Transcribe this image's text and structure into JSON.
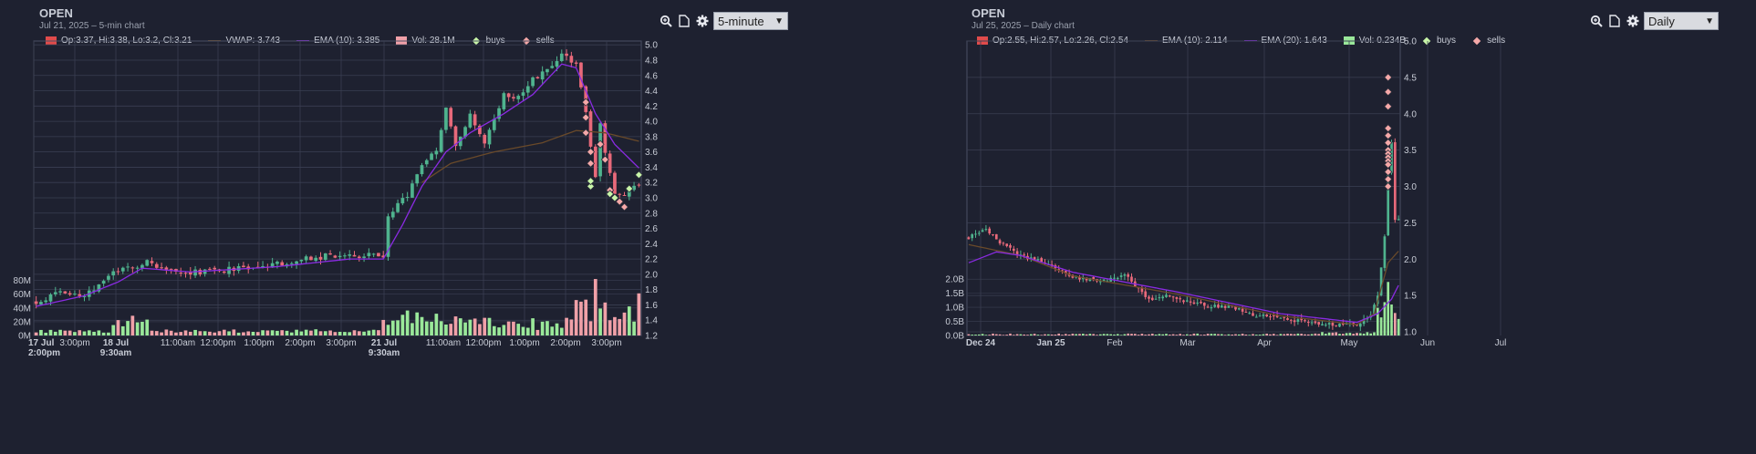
{
  "colors": {
    "up": "#4fb38e",
    "down": "#e8697a",
    "vol_up": "#9ae89a",
    "vol_down": "#f0a0a8",
    "ema_a": "#8a2be2",
    "ema_b": "#6a4a2a",
    "buy": "#c8f5a8",
    "sell": "#f5a8a8",
    "grid": "#3a3f52"
  },
  "panels": [
    {
      "title": "OPEN",
      "subtitle": "Jul 21, 2025 – 5-min chart",
      "interval": "5-minute",
      "toolbar": {
        "zoom": "zoom-icon",
        "export": "document-icon",
        "settings": "gear-icon"
      },
      "legend": {
        "ohlc": "Op:3.37, Hi:3.38, Lo:3.2, Cl:3.21",
        "line1": "VWAP: 3.743",
        "line2": "EMA (10): 3.385",
        "vol": "Vol: 28.1M",
        "buys": "buys",
        "sells": "sells"
      },
      "price_ticks": [
        "5.0",
        "4.8",
        "4.6",
        "4.4",
        "4.2",
        "4.0",
        "3.8",
        "3.6",
        "3.4",
        "3.2",
        "3.0",
        "2.8",
        "2.6",
        "2.4",
        "2.2",
        "2.0",
        "1.8",
        "1.6",
        "1.4",
        "1.2"
      ],
      "vol_ticks": [
        "80M",
        "60M",
        "40M",
        "20M",
        "0M"
      ],
      "x_ticks": [
        {
          "l1": "17 Jul",
          "l2": "2:00pm",
          "bold": true
        },
        {
          "l1": "3:00pm",
          "l2": "",
          "bold": false
        },
        {
          "l1": "18 Jul",
          "l2": "9:30am",
          "bold": true
        },
        {
          "l1": "11:00am",
          "l2": "",
          "bold": false
        },
        {
          "l1": "12:00pm",
          "l2": "",
          "bold": false
        },
        {
          "l1": "1:00pm",
          "l2": "",
          "bold": false
        },
        {
          "l1": "2:00pm",
          "l2": "",
          "bold": false
        },
        {
          "l1": "3:00pm",
          "l2": "",
          "bold": false
        },
        {
          "l1": "21 Jul",
          "l2": "9:30am",
          "bold": true
        },
        {
          "l1": "11:00am",
          "l2": "",
          "bold": false
        },
        {
          "l1": "12:00pm",
          "l2": "",
          "bold": false
        },
        {
          "l1": "1:00pm",
          "l2": "",
          "bold": false
        },
        {
          "l1": "2:00pm",
          "l2": "",
          "bold": false
        },
        {
          "l1": "3:00pm",
          "l2": "",
          "bold": false
        }
      ]
    },
    {
      "title": "OPEN",
      "subtitle": "Jul 25, 2025 – Daily chart",
      "interval": "Daily",
      "toolbar": {
        "zoom": "zoom-icon",
        "export": "document-icon",
        "settings": "gear-icon"
      },
      "legend": {
        "ohlc": "Op:2.55, Hi:2.57, Lo:2.26, Cl:2.54",
        "line1": "EMA (10): 2.114",
        "line2": "EMA (20): 1.643",
        "vol": "Vol: 0.234B",
        "buys": "buys",
        "sells": "sells"
      },
      "price_ticks": [
        "5.0",
        "4.5",
        "4.0",
        "3.5",
        "3.0",
        "2.5",
        "2.0",
        "1.5",
        "1.0"
      ],
      "vol_ticks": [
        "2.0B",
        "1.5B",
        "1.0B",
        "0.5B",
        "0.0B"
      ],
      "x_ticks": [
        {
          "l1": "Dec 24",
          "l2": "",
          "bold": true
        },
        {
          "l1": "Jan 25",
          "l2": "",
          "bold": true
        },
        {
          "l1": "Feb",
          "l2": "",
          "bold": false
        },
        {
          "l1": "Mar",
          "l2": "",
          "bold": false
        },
        {
          "l1": "Apr",
          "l2": "",
          "bold": false
        },
        {
          "l1": "May",
          "l2": "",
          "bold": false
        },
        {
          "l1": "Jun",
          "l2": "",
          "bold": false
        },
        {
          "l1": "Jul",
          "l2": "",
          "bold": false
        }
      ]
    }
  ],
  "chart_data": [
    {
      "type": "candlestick",
      "title": "OPEN",
      "subtitle": "Jul 21, 2025 – 5-min chart",
      "ylim": [
        1.2,
        5.05
      ],
      "volume_ylim_millions": [
        0,
        90
      ],
      "series": [
        {
          "name": "Price",
          "anchors": [
            {
              "t": 0,
              "p": 1.65
            },
            {
              "t": 5,
              "p": 1.75
            },
            {
              "t": 10,
              "p": 1.75
            },
            {
              "t": 15,
              "p": 1.95
            },
            {
              "t": 17,
              "p": 2.05
            },
            {
              "t": 20,
              "p": 2.1
            },
            {
              "t": 23,
              "p": 2.15
            },
            {
              "t": 26,
              "p": 2.1
            },
            {
              "t": 30,
              "p": 2.05
            },
            {
              "t": 32,
              "p": 2.03
            },
            {
              "t": 37,
              "p": 2.05
            },
            {
              "t": 42,
              "p": 2.07
            },
            {
              "t": 48,
              "p": 2.11
            },
            {
              "t": 52,
              "p": 2.15
            },
            {
              "t": 58,
              "p": 2.22
            },
            {
              "t": 62,
              "p": 2.25
            },
            {
              "t": 66,
              "p": 2.22
            },
            {
              "t": 70,
              "p": 2.25
            },
            {
              "t": 72,
              "p": 2.25
            },
            {
              "t": 73,
              "p": 2.75
            },
            {
              "t": 77,
              "p": 3.05
            },
            {
              "t": 80,
              "p": 3.45
            },
            {
              "t": 83,
              "p": 3.6
            },
            {
              "t": 85,
              "p": 4.15
            },
            {
              "t": 87,
              "p": 3.65
            },
            {
              "t": 90,
              "p": 4.1
            },
            {
              "t": 93,
              "p": 3.75
            },
            {
              "t": 97,
              "p": 4.35
            },
            {
              "t": 100,
              "p": 4.3
            },
            {
              "t": 103,
              "p": 4.55
            },
            {
              "t": 106,
              "p": 4.7
            },
            {
              "t": 109,
              "p": 4.87
            },
            {
              "t": 112,
              "p": 4.72
            },
            {
              "t": 114,
              "p": 4.1
            },
            {
              "t": 116,
              "p": 3.3
            },
            {
              "t": 117,
              "p": 3.95
            },
            {
              "t": 118,
              "p": 3.55
            },
            {
              "t": 120,
              "p": 3.05
            },
            {
              "t": 122,
              "p": 3.0
            },
            {
              "t": 125,
              "p": 3.2
            }
          ]
        },
        {
          "name": "VWAP",
          "values_start_t": 80,
          "values": [
            {
              "t": 80,
              "p": 3.2
            },
            {
              "t": 86,
              "p": 3.45
            },
            {
              "t": 95,
              "p": 3.6
            },
            {
              "t": 105,
              "p": 3.72
            },
            {
              "t": 112,
              "p": 3.88
            },
            {
              "t": 118,
              "p": 3.85
            },
            {
              "t": 125,
              "p": 3.74
            }
          ]
        },
        {
          "name": "EMA (10)",
          "values": [
            {
              "t": 0,
              "p": 1.58
            },
            {
              "t": 10,
              "p": 1.72
            },
            {
              "t": 17,
              "p": 1.9
            },
            {
              "t": 22,
              "p": 2.08
            },
            {
              "t": 32,
              "p": 2.03
            },
            {
              "t": 50,
              "p": 2.1
            },
            {
              "t": 65,
              "p": 2.2
            },
            {
              "t": 72,
              "p": 2.2
            },
            {
              "t": 76,
              "p": 2.65
            },
            {
              "t": 80,
              "p": 3.15
            },
            {
              "t": 85,
              "p": 3.6
            },
            {
              "t": 90,
              "p": 3.85
            },
            {
              "t": 97,
              "p": 4.1
            },
            {
              "t": 103,
              "p": 4.35
            },
            {
              "t": 109,
              "p": 4.75
            },
            {
              "t": 112,
              "p": 4.7
            },
            {
              "t": 116,
              "p": 4.1
            },
            {
              "t": 120,
              "p": 3.7
            },
            {
              "t": 125,
              "p": 3.39
            }
          ]
        }
      ],
      "buys": [
        {
          "t": 115,
          "p": 3.15
        },
        {
          "t": 115,
          "p": 3.22
        },
        {
          "t": 119,
          "p": 3.05
        },
        {
          "t": 120,
          "p": 3.0
        },
        {
          "t": 123,
          "p": 3.12
        },
        {
          "t": 125,
          "p": 3.3
        }
      ],
      "sells": [
        {
          "t": 114,
          "p": 4.25
        },
        {
          "t": 114,
          "p": 4.05
        },
        {
          "t": 114,
          "p": 3.85
        },
        {
          "t": 115,
          "p": 3.6
        },
        {
          "t": 115,
          "p": 3.45
        },
        {
          "t": 117,
          "p": 3.7
        },
        {
          "t": 118,
          "p": 3.5
        },
        {
          "t": 119,
          "p": 3.1
        },
        {
          "t": 121,
          "p": 2.95
        },
        {
          "t": 122,
          "p": 2.88
        }
      ]
    },
    {
      "type": "candlestick",
      "title": "OPEN",
      "subtitle": "Jul 25, 2025 – Daily chart",
      "ylim": [
        0.95,
        5.0
      ],
      "volume_ylim_billions": [
        0,
        2.2
      ],
      "series": [
        {
          "name": "Price",
          "anchors": [
            {
              "t": 0,
              "p": 2.3
            },
            {
              "t": 5,
              "p": 2.4
            },
            {
              "t": 10,
              "p": 2.2
            },
            {
              "t": 15,
              "p": 2.05
            },
            {
              "t": 22,
              "p": 1.95
            },
            {
              "t": 30,
              "p": 1.75
            },
            {
              "t": 38,
              "p": 1.7
            },
            {
              "t": 45,
              "p": 1.78
            },
            {
              "t": 52,
              "p": 1.45
            },
            {
              "t": 58,
              "p": 1.5
            },
            {
              "t": 64,
              "p": 1.4
            },
            {
              "t": 70,
              "p": 1.35
            },
            {
              "t": 76,
              "p": 1.35
            },
            {
              "t": 80,
              "p": 1.25
            },
            {
              "t": 88,
              "p": 1.2
            },
            {
              "t": 95,
              "p": 1.15
            },
            {
              "t": 105,
              "p": 1.1
            },
            {
              "t": 112,
              "p": 1.1
            },
            {
              "t": 116,
              "p": 1.25
            },
            {
              "t": 118,
              "p": 1.5
            },
            {
              "t": 120,
              "p": 2.3
            },
            {
              "t": 121,
              "p": 3.15
            },
            {
              "t": 122,
              "p": 3.6
            },
            {
              "t": 123,
              "p": 2.55
            },
            {
              "t": 124,
              "p": 2.55
            }
          ]
        },
        {
          "name": "EMA (10)",
          "values": [
            {
              "t": 0,
              "p": 2.2
            },
            {
              "t": 15,
              "p": 2.05
            },
            {
              "t": 30,
              "p": 1.77
            },
            {
              "t": 60,
              "p": 1.52
            },
            {
              "t": 90,
              "p": 1.22
            },
            {
              "t": 112,
              "p": 1.1
            },
            {
              "t": 117,
              "p": 1.25
            },
            {
              "t": 121,
              "p": 1.95
            },
            {
              "t": 124,
              "p": 2.11
            }
          ]
        },
        {
          "name": "EMA (20)",
          "values": [
            {
              "t": 0,
              "p": 1.95
            },
            {
              "t": 8,
              "p": 2.1
            },
            {
              "t": 15,
              "p": 2.05
            },
            {
              "t": 30,
              "p": 1.82
            },
            {
              "t": 60,
              "p": 1.55
            },
            {
              "t": 90,
              "p": 1.25
            },
            {
              "t": 112,
              "p": 1.13
            },
            {
              "t": 118,
              "p": 1.25
            },
            {
              "t": 122,
              "p": 1.45
            },
            {
              "t": 124,
              "p": 1.64
            }
          ]
        }
      ],
      "buys": [],
      "sells": [
        {
          "t": 121,
          "p": 4.5
        },
        {
          "t": 121,
          "p": 4.3
        },
        {
          "t": 121,
          "p": 4.1
        },
        {
          "t": 121,
          "p": 3.8
        },
        {
          "t": 121,
          "p": 3.7
        },
        {
          "t": 121,
          "p": 3.6
        },
        {
          "t": 121,
          "p": 3.5
        },
        {
          "t": 121,
          "p": 3.45
        },
        {
          "t": 121,
          "p": 3.4
        },
        {
          "t": 121,
          "p": 3.35
        },
        {
          "t": 121,
          "p": 3.3
        },
        {
          "t": 121,
          "p": 3.2
        },
        {
          "t": 121,
          "p": 3.1
        },
        {
          "t": 121,
          "p": 3.0
        }
      ]
    }
  ]
}
